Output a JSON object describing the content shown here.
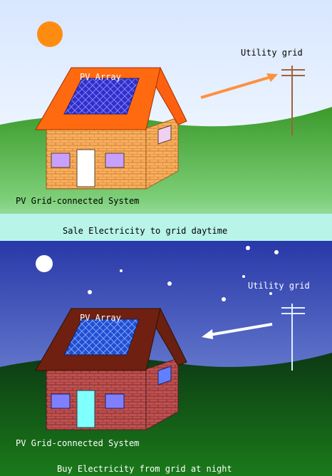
{
  "day": {
    "array_label": "PV Array",
    "grid_label": "Utility grid",
    "system_label": "PV Grid-connected System",
    "caption": "Sale Electricity to grid daytime"
  },
  "night": {
    "array_label": "PV Array",
    "grid_label": "Utility grid",
    "system_label": "PV Grid-connected System",
    "caption": "Buy Electricity from grid at night"
  }
}
